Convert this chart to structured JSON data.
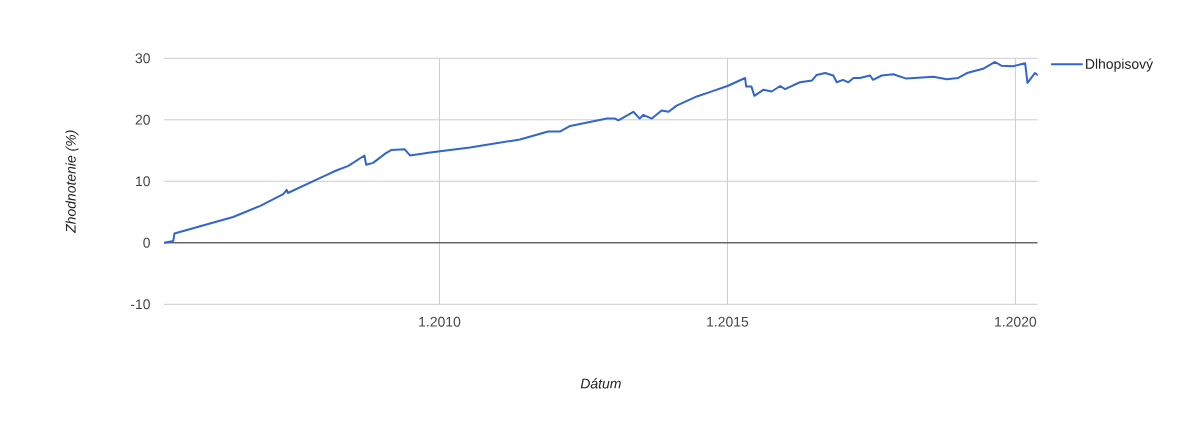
{
  "chart_data": {
    "type": "line",
    "xlabel": "Dátum",
    "ylabel": "Zhodnotenie (%)",
    "x": [
      "2005-03-21",
      "2005-05-19",
      "2005-05-26",
      "2006-06-02",
      "2006-11-21",
      "2007-04-16",
      "2007-05-08",
      "2007-05-15",
      "2007-12-27",
      "2008-03-21",
      "2008-06-02",
      "2008-09-12",
      "2008-09-23",
      "2008-11-06",
      "2009-01-22",
      "2009-03-03",
      "2009-05-26",
      "2009-06-28",
      "2009-11-03",
      "2010-07-13",
      "2011-05-26",
      "2011-11-21",
      "2012-02-06",
      "2012-04-09",
      "2012-11-28",
      "2013-01-19",
      "2013-02-09",
      "2013-05-15",
      "2013-06-24",
      "2013-07-16",
      "2013-09-09",
      "2013-11-10",
      "2013-12-24",
      "2014-02-13",
      "2014-06-21",
      "2014-10-04",
      "2015-01-01",
      "2015-04-23",
      "2015-04-30",
      "2015-06-02",
      "2015-06-21",
      "2015-08-18",
      "2015-10-08",
      "2015-12-02",
      "2016-01-01",
      "2016-04-05",
      "2016-06-21",
      "2016-07-20",
      "2016-09-12",
      "2016-11-03",
      "2016-11-25",
      "2017-01-04",
      "2017-02-06",
      "2017-03-11",
      "2017-04-20",
      "2017-06-24",
      "2017-07-13",
      "2017-09-06",
      "2017-11-18",
      "2018-02-09",
      "2018-07-31",
      "2018-10-23",
      "2019-01-04",
      "2019-02-28",
      "2019-06-10",
      "2019-08-25",
      "2019-10-04",
      "2019-12-17",
      "2020-03-03",
      "2020-03-18",
      "2020-05-04",
      "2020-05-22"
    ],
    "series": [
      {
        "name": "Dlhopisový",
        "color": "#3366cc",
        "values": [
          0,
          0.3,
          1.5,
          4.2,
          6.0,
          7.9,
          8.6,
          8.1,
          10.8,
          11.8,
          12.5,
          14.2,
          12.7,
          13.0,
          14.5,
          15.1,
          15.2,
          14.2,
          14.7,
          15.5,
          16.8,
          18.1,
          18.1,
          19.0,
          20.2,
          20.2,
          19.9,
          21.3,
          20.2,
          20.8,
          20.2,
          21.5,
          21.3,
          22.3,
          23.8,
          24.7,
          25.5,
          26.8,
          25.4,
          25.4,
          23.9,
          24.9,
          24.6,
          25.5,
          25.0,
          26.1,
          26.4,
          27.3,
          27.6,
          27.2,
          26.1,
          26.5,
          26.1,
          26.8,
          26.8,
          27.2,
          26.5,
          27.2,
          27.4,
          26.7,
          27.0,
          26.6,
          26.8,
          27.6,
          28.3,
          29.4,
          28.8,
          28.7,
          29.2,
          26.0,
          27.6,
          27.3
        ]
      }
    ],
    "xlim": [
      "2005-03-21",
      "2020-05-22"
    ],
    "xticks": [
      {
        "value": "2010-01-01",
        "label": "1.2010"
      },
      {
        "value": "2015-01-01",
        "label": "1.2015"
      },
      {
        "value": "2020-01-01",
        "label": "1.2020"
      }
    ],
    "ylim": [
      -10,
      30
    ],
    "yticks": [
      -10,
      0,
      10,
      20,
      30
    ],
    "ref_lines": [
      {
        "axis": "y",
        "value": 0,
        "color": "#333333"
      }
    ],
    "grid": true,
    "legend": "right"
  }
}
